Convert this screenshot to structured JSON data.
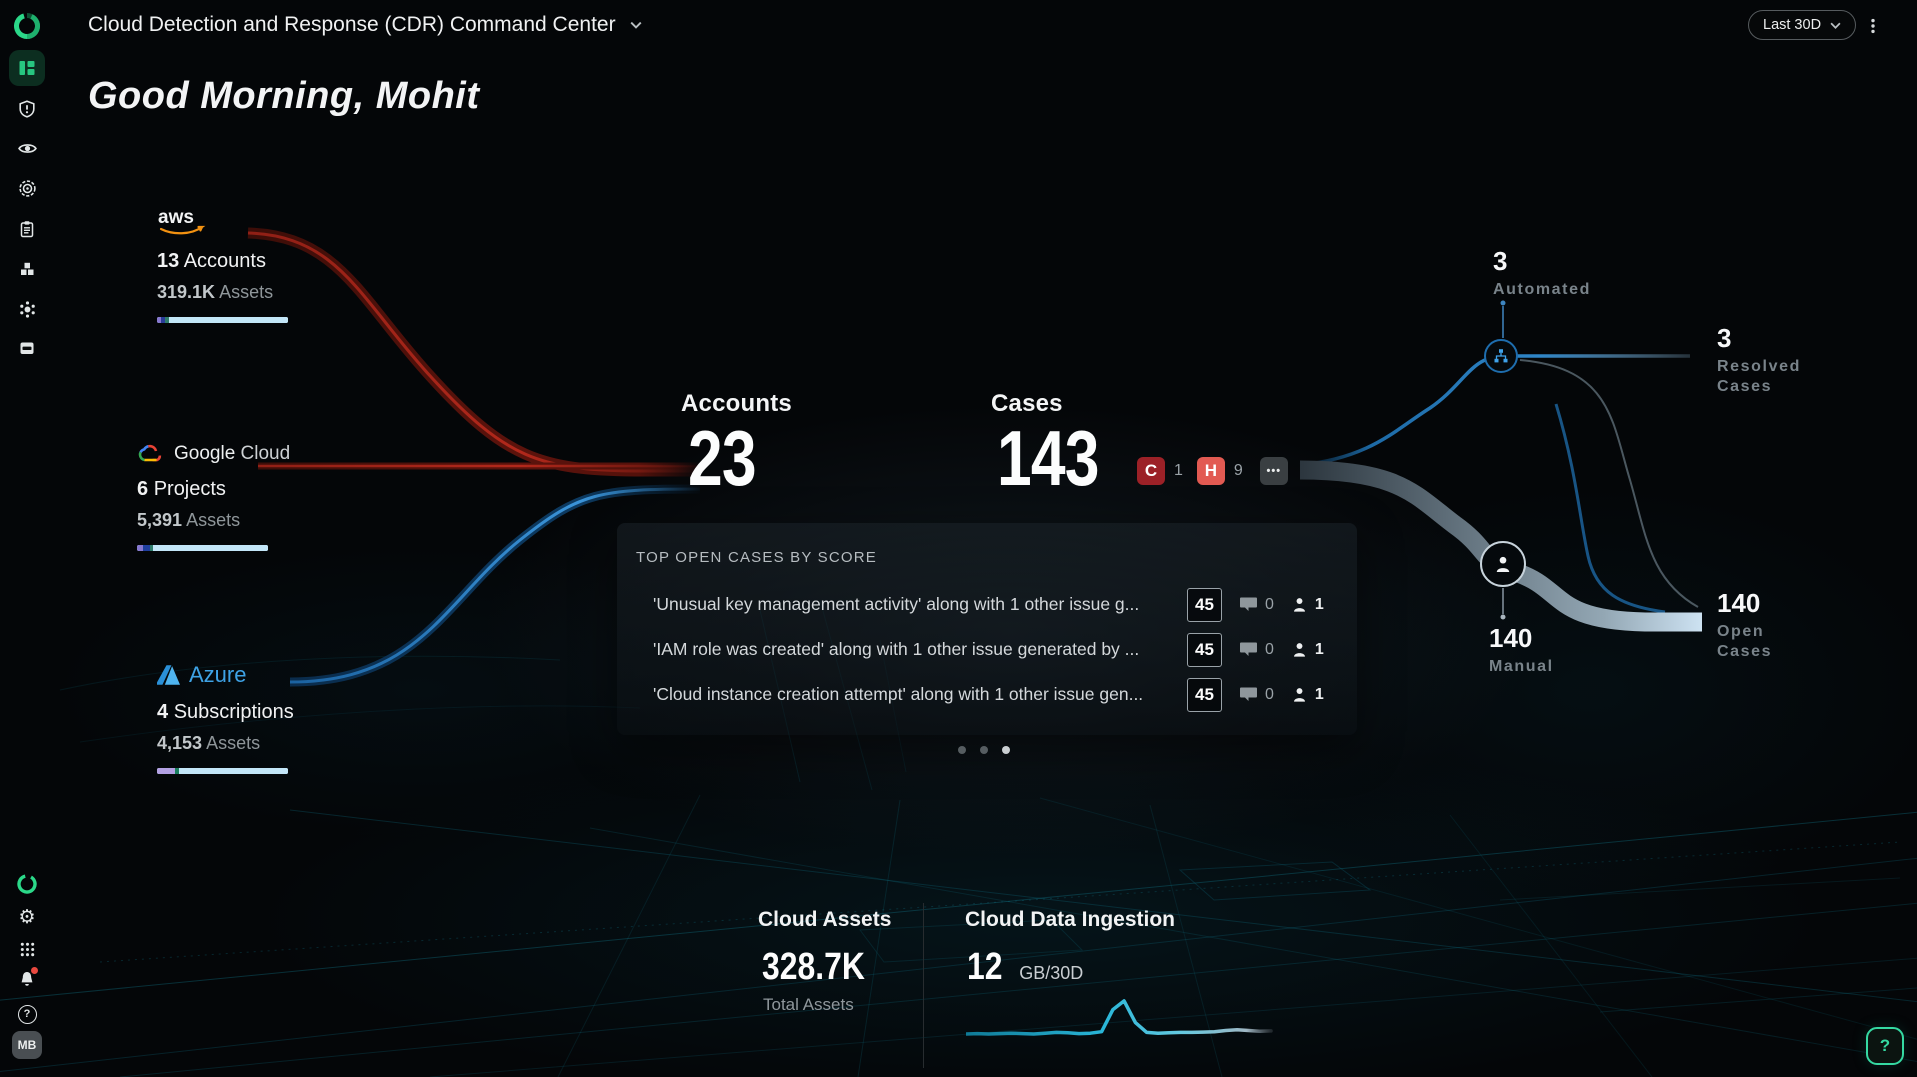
{
  "header": {
    "title": "Cloud Detection and Response (CDR) Command Center",
    "time_range_label": "Last 30D",
    "greeting": "Good Morning, Mohit"
  },
  "sidebar": {
    "top_icons": [
      "orca-logo",
      "dashboard",
      "shield-alert",
      "eye",
      "target",
      "clipboard",
      "blocks",
      "radial",
      "inventory-window"
    ],
    "bottom_icons": [
      "orca-ring",
      "gear",
      "app-grid",
      "bell-notification",
      "help"
    ],
    "avatar_initials": "MB"
  },
  "providers": [
    {
      "name": "aws",
      "count_num": "13",
      "count_word": "Accounts",
      "assets_num": "319.1K",
      "assets_word": "Assets",
      "bar_segments": [
        {
          "color": "#8678d0",
          "pct": 3.2
        },
        {
          "color": "#2b3d99",
          "pct": 3.2
        },
        {
          "color": "#2f7d6d",
          "pct": 2.4
        },
        {
          "color": "#c3e6f8",
          "pct": 91.2
        }
      ]
    },
    {
      "name": "Google Cloud",
      "count_num": "6",
      "count_word": "Projects",
      "assets_num": "5,391",
      "assets_word": "Assets",
      "bar_segments": [
        {
          "color": "#8678d0",
          "pct": 4.6
        },
        {
          "color": "#1f3f9e",
          "pct": 5.4
        },
        {
          "color": "#2f7d6d",
          "pct": 2.3
        },
        {
          "color": "#c3e6f8",
          "pct": 87.7
        }
      ]
    },
    {
      "name": "Azure",
      "count_num": "4",
      "count_word": "Subscriptions",
      "assets_num": "4,153",
      "assets_word": "Assets",
      "bar_segments": [
        {
          "color": "#b3a1e3",
          "pct": 14.0
        },
        {
          "color": "#1b7f5f",
          "pct": 2.5
        },
        {
          "color": "#c3e6f8",
          "pct": 83.5
        }
      ]
    }
  ],
  "stats": {
    "accounts": {
      "label": "Accounts",
      "value": "23"
    },
    "cases": {
      "label": "Cases",
      "value": "143",
      "severities": [
        {
          "code": "C",
          "count": "1",
          "color": "#9c2127"
        },
        {
          "code": "H",
          "count": "9",
          "color": "#e25a52"
        }
      ],
      "more_label": "•••"
    }
  },
  "top_cases": {
    "title": "TOP OPEN CASES BY SCORE",
    "rows": [
      {
        "text": "'Unusual key management activity' along with 1 other issue g...",
        "score": "45",
        "comments": "0",
        "assignees": "1"
      },
      {
        "text": "'IAM role was created' along with 1 other issue generated by ...",
        "score": "45",
        "comments": "0",
        "assignees": "1"
      },
      {
        "text": "'Cloud instance creation attempt' along with 1 other issue gen...",
        "score": "45",
        "comments": "0",
        "assignees": "1"
      }
    ],
    "pagination": {
      "dots": 3,
      "active": 2
    }
  },
  "flow": {
    "automated": {
      "value": "3",
      "label": "Automated"
    },
    "resolved": {
      "value": "3",
      "label": "Resolved Cases"
    },
    "manual": {
      "value": "140",
      "label": "Manual"
    },
    "open": {
      "value": "140",
      "label": "Open Cases"
    }
  },
  "footer_stats": {
    "cloud_assets": {
      "title": "Cloud Assets",
      "value": "328.7K",
      "sub": "Total Assets"
    },
    "ingestion": {
      "title": "Cloud Data Ingestion",
      "value": "12",
      "unit": "GB/30D",
      "sparkline": [
        8,
        9,
        8,
        9,
        10,
        9,
        8,
        10,
        12,
        11,
        9,
        10,
        14,
        72,
        95,
        38,
        12,
        10,
        11,
        12,
        12,
        13,
        14,
        17,
        19,
        17,
        15,
        16
      ]
    }
  },
  "help_button_label": "?",
  "colors": {
    "accent_green": "#27c680",
    "bar_base": "#c3e6f8",
    "ribbon_red": "#b2281b",
    "ribbon_blue": "#2e86c9"
  }
}
